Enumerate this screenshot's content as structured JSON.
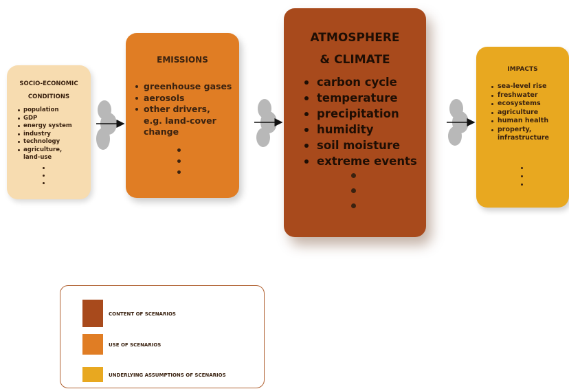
{
  "boxes": [
    {
      "title": [
        "SOCIO-ECONOMIC",
        "CONDITIONS"
      ],
      "lines": [
        "population",
        "GDP",
        "energy system",
        "industry",
        "technology",
        "agriculture,",
        "land-use"
      ]
    },
    {
      "title": [
        "EMISSIONS"
      ],
      "lines": [
        "greenhouse gases",
        "aerosols",
        "other drivers,",
        "e.g. land-cover",
        "change"
      ]
    },
    {
      "title": [
        "ATMOSPHERE",
        "& CLIMATE"
      ],
      "lines": [
        "carbon cycle",
        "temperature",
        "precipitation",
        "humidity",
        "soil moisture",
        "extreme events"
      ]
    },
    {
      "title": [
        "IMPACTS"
      ],
      "lines": [
        "sea-level rise",
        "freshwater",
        "ecosystems",
        "agriculture",
        "human health",
        "property,",
        "infrastructure"
      ]
    }
  ],
  "legend": [
    "CONTENT OF SCENARIOS",
    "USE OF SCENARIOS",
    "UNDERLYING ASSUMPTIONS OF SCENARIOS"
  ]
}
